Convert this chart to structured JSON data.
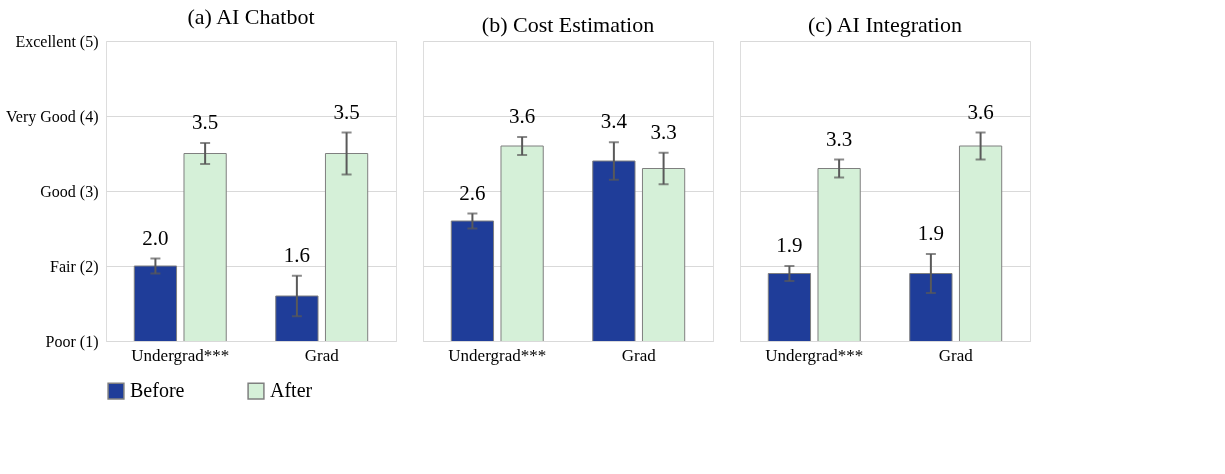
{
  "chart_data": [
    {
      "type": "bar",
      "title": "(a) AI Chatbot",
      "categories": [
        "Undergrad***",
        "Grad"
      ],
      "series": [
        {
          "name": "Before",
          "color": "#1f3d99",
          "values": [
            2.0,
            1.6
          ],
          "errors": [
            0.1,
            0.27
          ],
          "value_labels": [
            "2.0",
            "1.6"
          ]
        },
        {
          "name": "After",
          "color": "#d5f0d8",
          "values": [
            3.5,
            3.5
          ],
          "errors": [
            0.14,
            0.28
          ],
          "value_labels": [
            "3.5",
            "3.5"
          ]
        }
      ],
      "ylim": [
        1,
        5
      ],
      "yticks": [
        {
          "value": 1,
          "label": "Poor (1)"
        },
        {
          "value": 2,
          "label": "Fair (2)"
        },
        {
          "value": 3,
          "label": "Good (3)"
        },
        {
          "value": 4,
          "label": "Very Good (4)"
        },
        {
          "value": 5,
          "label": "Excellent (5)"
        }
      ],
      "grid": "y",
      "legend": "bottom"
    },
    {
      "type": "bar",
      "title": "(b) Cost Estimation",
      "categories": [
        "Undergrad***",
        "Grad"
      ],
      "series": [
        {
          "color": "#1f3d99",
          "values": [
            2.6,
            3.4
          ],
          "errors": [
            0.1,
            0.25
          ]
        },
        {
          "color": "#d5f0d8",
          "values": [
            3.6,
            3.3
          ],
          "errors": [
            0.12,
            0.21
          ]
        }
      ],
      "ylim": [
        1,
        5
      ],
      "yticks": [
        1,
        2,
        3,
        4,
        5
      ],
      "grid": "y",
      "data_labels": true,
      "tick_labels": "x"
    },
    {
      "type": "bar",
      "title": "(c) AI Integration",
      "categories": [
        "Undergrad***",
        "Grad"
      ],
      "series": [
        {
          "color": "#1f3d99",
          "values": [
            1.9,
            1.9
          ],
          "errors": [
            0.1,
            0.26
          ]
        },
        {
          "color": "#d5f0d8",
          "values": [
            3.3,
            3.6
          ],
          "errors": [
            0.12,
            0.18
          ]
        }
      ],
      "ylim": [
        1,
        5
      ],
      "yticks": [
        1,
        2,
        3,
        4,
        5
      ],
      "grid": "y",
      "data_labels": true,
      "tick_labels": "x"
    }
  ]
}
